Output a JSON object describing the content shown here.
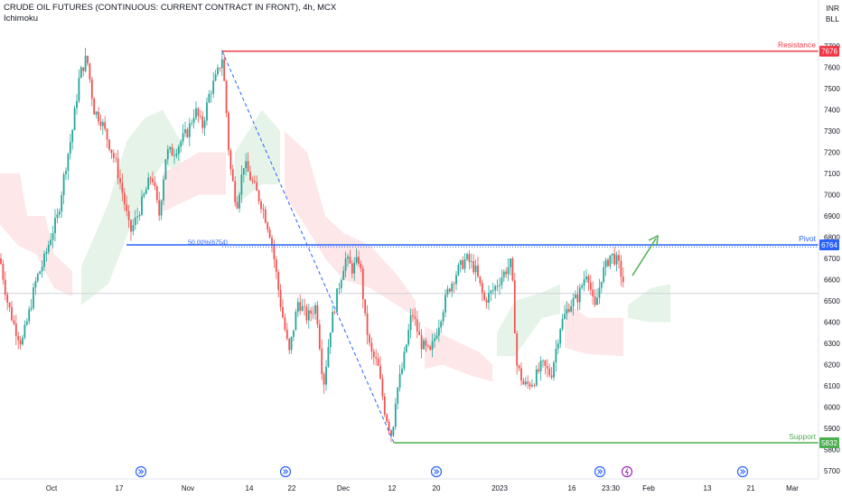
{
  "header": {
    "title": "CRUDE OIL FUTURES (CONTINUOUS: CURRENT CONTRACT IN FRONT), 4h, MCX",
    "indicator": "Ichimoku"
  },
  "axis_units": [
    "INR",
    "BLL"
  ],
  "colors": {
    "up": "#26a69a",
    "down": "#ef5350",
    "resistance": "#f23645",
    "pivot": "#2962ff",
    "support": "#4caf50",
    "cloud_bull": "#e3f2e6",
    "cloud_bear": "#fde4e6",
    "diagonal": "#2962ff",
    "arrow": "#4caf50"
  },
  "chart_data": {
    "type": "candlestick",
    "y_ticks": [
      5700,
      5800,
      5900,
      6000,
      6100,
      6200,
      6300,
      6400,
      6500,
      6600,
      6700,
      6800,
      6900,
      7000,
      7100,
      7200,
      7300,
      7400,
      7500,
      7600,
      7700
    ],
    "ylim": [
      5650,
      7770
    ],
    "x_ticks": [
      "Oct",
      "17",
      "Nov",
      "14",
      "22",
      "Dec",
      "12",
      "20",
      "2023",
      "16",
      "23:30",
      "Feb",
      "13",
      "21",
      "Mar"
    ],
    "levels": [
      {
        "name": "Resistance",
        "value": 7676,
        "label": "7676"
      },
      {
        "name": "Pivot",
        "value": 6764,
        "label": "6764"
      },
      {
        "name": "Support",
        "value": 5832,
        "label": "5832"
      }
    ],
    "fib_label": "50.00%(6754)",
    "fib_value": 6754,
    "current_price_line": 6535,
    "price_path": [
      [
        0,
        6700
      ],
      [
        8,
        6500
      ],
      [
        16,
        6380
      ],
      [
        24,
        6300
      ],
      [
        32,
        6440
      ],
      [
        40,
        6600
      ],
      [
        48,
        6680
      ],
      [
        56,
        6800
      ],
      [
        64,
        6900
      ],
      [
        72,
        7120
      ],
      [
        80,
        7300
      ],
      [
        88,
        7560
      ],
      [
        96,
        7650
      ],
      [
        104,
        7400
      ],
      [
        112,
        7350
      ],
      [
        120,
        7250
      ],
      [
        128,
        7150
      ],
      [
        136,
        7000
      ],
      [
        144,
        6820
      ],
      [
        152,
        6900
      ],
      [
        160,
        7000
      ],
      [
        168,
        7100
      ],
      [
        176,
        6900
      ],
      [
        184,
        7200
      ],
      [
        192,
        7200
      ],
      [
        200,
        7250
      ],
      [
        208,
        7300
      ],
      [
        216,
        7400
      ],
      [
        224,
        7320
      ],
      [
        232,
        7480
      ],
      [
        240,
        7560
      ],
      [
        246,
        7650
      ],
      [
        250,
        7430
      ],
      [
        254,
        7150
      ],
      [
        262,
        6950
      ],
      [
        270,
        7150
      ],
      [
        280,
        7050
      ],
      [
        290,
        6950
      ],
      [
        300,
        6800
      ],
      [
        310,
        6500
      ],
      [
        320,
        6250
      ],
      [
        330,
        6500
      ],
      [
        340,
        6420
      ],
      [
        350,
        6480
      ],
      [
        358,
        6100
      ],
      [
        366,
        6380
      ],
      [
        374,
        6550
      ],
      [
        382,
        6700
      ],
      [
        390,
        6650
      ],
      [
        398,
        6700
      ],
      [
        404,
        6420
      ],
      [
        410,
        6260
      ],
      [
        418,
        6200
      ],
      [
        426,
        5980
      ],
      [
        434,
        5860
      ],
      [
        438,
        6050
      ],
      [
        446,
        6200
      ],
      [
        456,
        6450
      ],
      [
        466,
        6300
      ],
      [
        476,
        6250
      ],
      [
        486,
        6400
      ],
      [
        496,
        6550
      ],
      [
        506,
        6640
      ],
      [
        516,
        6700
      ],
      [
        526,
        6650
      ],
      [
        536,
        6500
      ],
      [
        546,
        6550
      ],
      [
        556,
        6620
      ],
      [
        566,
        6680
      ],
      [
        572,
        6200
      ],
      [
        580,
        6100
      ],
      [
        590,
        6120
      ],
      [
        600,
        6200
      ],
      [
        610,
        6150
      ],
      [
        620,
        6380
      ],
      [
        630,
        6480
      ],
      [
        640,
        6520
      ],
      [
        650,
        6650
      ],
      [
        658,
        6450
      ],
      [
        666,
        6620
      ],
      [
        676,
        6720
      ],
      [
        684,
        6680
      ],
      [
        692,
        6560
      ]
    ],
    "cloud_segments": [
      {
        "kind": "bear",
        "pts": [
          [
            0,
            7100
          ],
          [
            22,
            7100
          ],
          [
            30,
            6900
          ],
          [
            50,
            6900
          ],
          [
            60,
            6720
          ],
          [
            80,
            6640
          ],
          [
            80,
            6520
          ],
          [
            60,
            6560
          ],
          [
            40,
            6720
          ],
          [
            20,
            6760
          ],
          [
            0,
            6860
          ]
        ]
      },
      {
        "kind": "bull",
        "pts": [
          [
            90,
            6660
          ],
          [
            120,
            6960
          ],
          [
            140,
            7250
          ],
          [
            160,
            7360
          ],
          [
            180,
            7400
          ],
          [
            200,
            7250
          ],
          [
            200,
            7100
          ],
          [
            180,
            7150
          ],
          [
            160,
            7000
          ],
          [
            140,
            6800
          ],
          [
            120,
            6580
          ],
          [
            90,
            6480
          ]
        ]
      },
      {
        "kind": "bear",
        "pts": [
          [
            180,
            7100
          ],
          [
            220,
            7200
          ],
          [
            250,
            7200
          ],
          [
            250,
            7000
          ],
          [
            220,
            7000
          ],
          [
            180,
            6920
          ]
        ]
      },
      {
        "kind": "bull",
        "pts": [
          [
            260,
            7200
          ],
          [
            290,
            7400
          ],
          [
            310,
            7300
          ],
          [
            310,
            7050
          ],
          [
            290,
            7050
          ],
          [
            260,
            6950
          ]
        ]
      },
      {
        "kind": "bear",
        "pts": [
          [
            315,
            7300
          ],
          [
            340,
            7200
          ],
          [
            360,
            6900
          ],
          [
            380,
            6820
          ],
          [
            410,
            6760
          ],
          [
            440,
            6620
          ],
          [
            460,
            6500
          ],
          [
            460,
            6420
          ],
          [
            440,
            6480
          ],
          [
            410,
            6560
          ],
          [
            380,
            6600
          ],
          [
            360,
            6700
          ],
          [
            340,
            6840
          ],
          [
            315,
            7000
          ]
        ]
      },
      {
        "kind": "bear",
        "pts": [
          [
            470,
            6380
          ],
          [
            500,
            6320
          ],
          [
            530,
            6260
          ],
          [
            545,
            6200
          ],
          [
            545,
            6120
          ],
          [
            520,
            6150
          ],
          [
            490,
            6200
          ],
          [
            470,
            6180
          ]
        ]
      },
      {
        "kind": "bull",
        "pts": [
          [
            550,
            6350
          ],
          [
            570,
            6500
          ],
          [
            600,
            6540
          ],
          [
            620,
            6580
          ],
          [
            620,
            6440
          ],
          [
            600,
            6420
          ],
          [
            570,
            6240
          ],
          [
            550,
            6240
          ]
        ]
      },
      {
        "kind": "bear",
        "pts": [
          [
            625,
            6500
          ],
          [
            650,
            6420
          ],
          [
            690,
            6420
          ],
          [
            690,
            6240
          ],
          [
            650,
            6250
          ],
          [
            625,
            6280
          ]
        ]
      },
      {
        "kind": "bull",
        "pts": [
          [
            695,
            6480
          ],
          [
            720,
            6560
          ],
          [
            742,
            6580
          ],
          [
            742,
            6400
          ],
          [
            720,
            6400
          ],
          [
            695,
            6420
          ]
        ]
      }
    ]
  }
}
